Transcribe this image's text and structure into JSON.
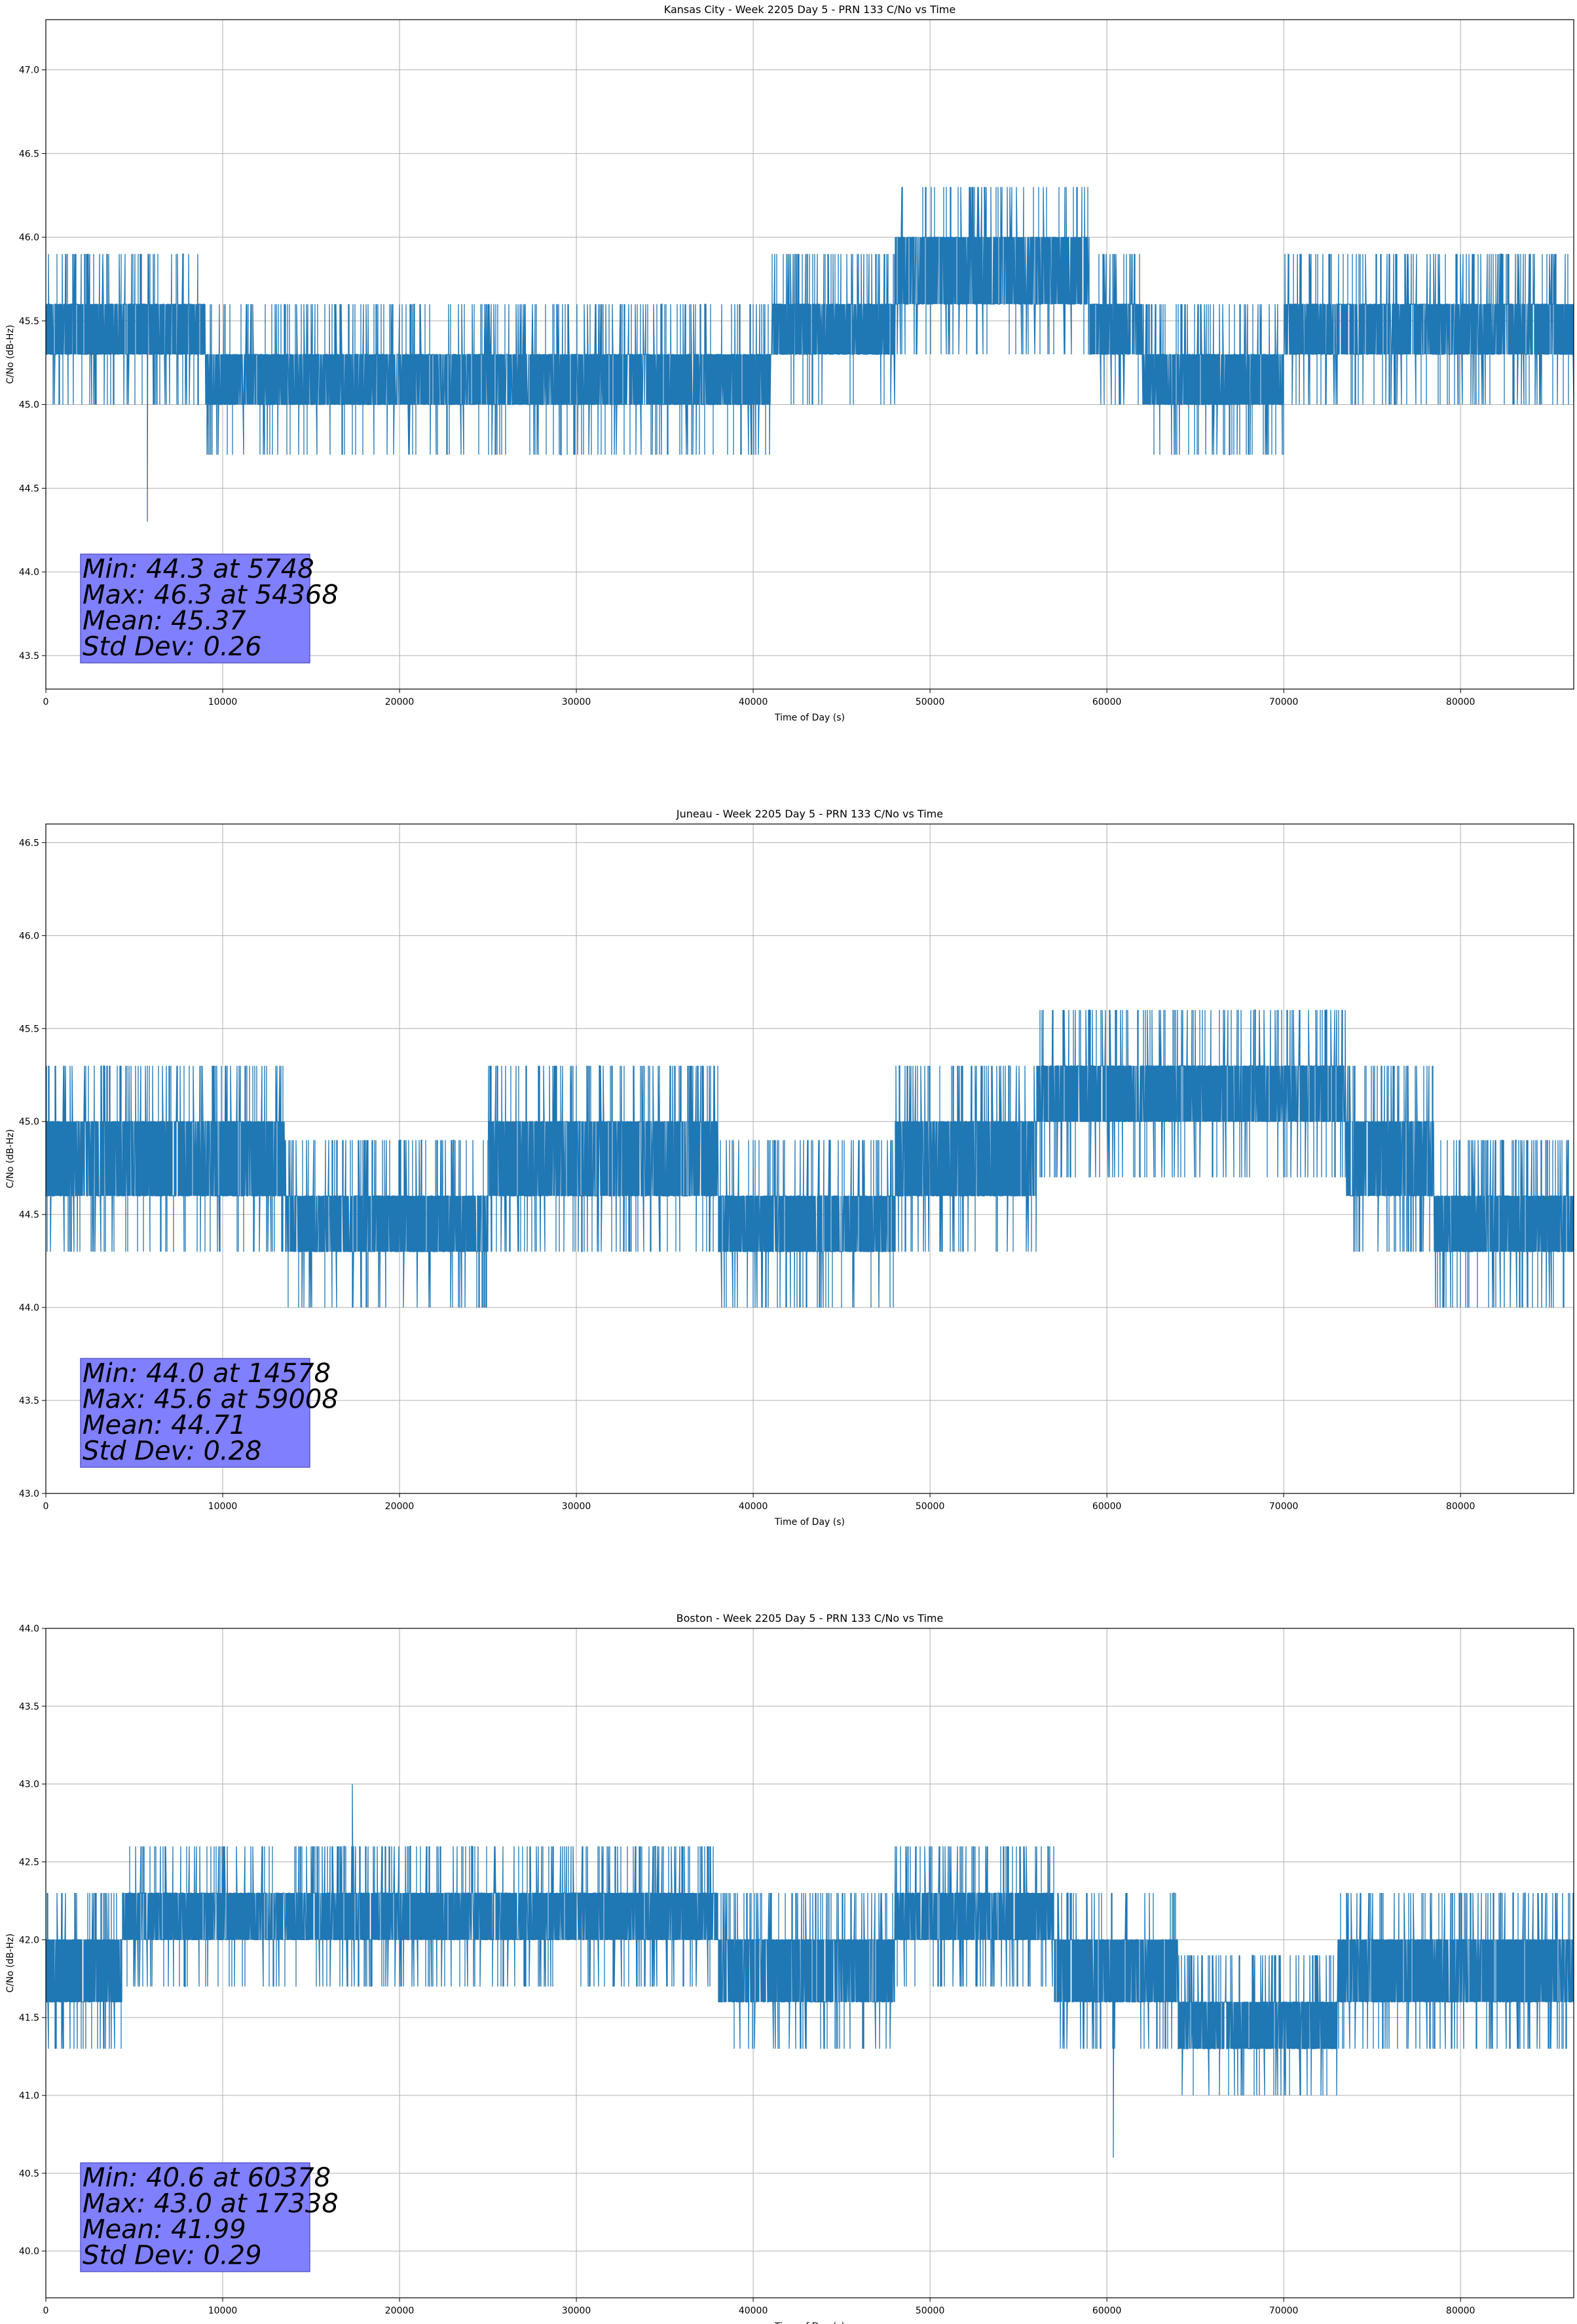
{
  "chart_data": [
    {
      "type": "line",
      "title": "Kansas City - Week 2205 Day 5 - PRN 133 C/No vs Time",
      "xlabel": "Time of Day (s)",
      "ylabel": "C/No (dB-Hz)",
      "xlim": [
        0,
        86400
      ],
      "ylim": [
        43.3,
        47.3
      ],
      "xticks": [
        0,
        10000,
        20000,
        30000,
        40000,
        50000,
        60000,
        70000,
        80000
      ],
      "yticks": [
        43.5,
        44.0,
        44.5,
        45.0,
        45.5,
        46.0,
        46.5,
        47.0
      ],
      "grid": true,
      "color": "#1f77b4",
      "quantization": 0.3,
      "base_levels": [
        {
          "x_start": 0,
          "x_end": 9000,
          "low": 45.3,
          "high": 45.6
        },
        {
          "x_start": 9000,
          "x_end": 41000,
          "low": 45.0,
          "high": 45.3
        },
        {
          "x_start": 41000,
          "x_end": 48000,
          "low": 45.3,
          "high": 45.6
        },
        {
          "x_start": 48000,
          "x_end": 59000,
          "low": 45.6,
          "high": 46.0
        },
        {
          "x_start": 59000,
          "x_end": 62000,
          "low": 45.3,
          "high": 45.6
        },
        {
          "x_start": 62000,
          "x_end": 70000,
          "low": 45.0,
          "high": 45.3
        },
        {
          "x_start": 70000,
          "x_end": 86400,
          "low": 45.3,
          "high": 45.6
        }
      ],
      "extremes": {
        "min": {
          "x": 5748,
          "y": 44.3
        },
        "max": {
          "x": 54368,
          "y": 46.3
        }
      },
      "stats": {
        "lines": [
          "Min: 44.3 at 5748",
          "Max: 46.3 at 54368",
          "Mean: 45.37",
          "Std Dev: 0.26"
        ],
        "box_color": "#8080ff",
        "placement": "bottom-left"
      }
    },
    {
      "type": "line",
      "title": "Juneau - Week 2205 Day 5 - PRN 133 C/No vs Time",
      "xlabel": "Time of Day (s)",
      "ylabel": "C/No (dB-Hz)",
      "xlim": [
        0,
        86400
      ],
      "ylim": [
        43.0,
        46.6
      ],
      "xticks": [
        0,
        10000,
        20000,
        30000,
        40000,
        50000,
        60000,
        70000,
        80000
      ],
      "yticks": [
        43.0,
        43.5,
        44.0,
        44.5,
        45.0,
        45.5,
        46.0,
        46.5
      ],
      "grid": true,
      "color": "#1f77b4",
      "quantization": 0.3,
      "base_levels": [
        {
          "x_start": 0,
          "x_end": 13500,
          "low": 44.6,
          "high": 45.0
        },
        {
          "x_start": 13500,
          "x_end": 25000,
          "low": 44.3,
          "high": 44.6
        },
        {
          "x_start": 25000,
          "x_end": 38000,
          "low": 44.6,
          "high": 45.0
        },
        {
          "x_start": 38000,
          "x_end": 48000,
          "low": 44.3,
          "high": 44.6
        },
        {
          "x_start": 48000,
          "x_end": 56000,
          "low": 44.6,
          "high": 45.0
        },
        {
          "x_start": 56000,
          "x_end": 73500,
          "low": 45.0,
          "high": 45.3
        },
        {
          "x_start": 73500,
          "x_end": 78500,
          "low": 44.6,
          "high": 45.0
        },
        {
          "x_start": 78500,
          "x_end": 86400,
          "low": 44.3,
          "high": 44.6
        }
      ],
      "extremes": {
        "min": {
          "x": 14578,
          "y": 44.0
        },
        "max": {
          "x": 59008,
          "y": 45.6
        }
      },
      "stats": {
        "lines": [
          "Min: 44.0 at 14578",
          "Max: 45.6 at 59008",
          "Mean: 44.71",
          "Std Dev: 0.28"
        ],
        "box_color": "#8080ff",
        "placement": "bottom-left"
      }
    },
    {
      "type": "line",
      "title": "Boston - Week 2205 Day 5 - PRN 133 C/No vs Time",
      "xlabel": "Time of Day (s)",
      "ylabel": "C/No (dB-Hz)",
      "xlim": [
        0,
        86400
      ],
      "ylim": [
        39.7,
        44.0
      ],
      "xticks": [
        0,
        10000,
        20000,
        30000,
        40000,
        50000,
        60000,
        70000,
        80000
      ],
      "yticks": [
        40.0,
        40.5,
        41.0,
        41.5,
        42.0,
        42.5,
        43.0,
        43.5,
        44.0
      ],
      "grid": true,
      "color": "#1f77b4",
      "quantization": 0.3,
      "base_levels": [
        {
          "x_start": 0,
          "x_end": 4300,
          "low": 41.6,
          "high": 42.0
        },
        {
          "x_start": 4300,
          "x_end": 38000,
          "low": 42.0,
          "high": 42.3
        },
        {
          "x_start": 38000,
          "x_end": 48000,
          "low": 41.6,
          "high": 42.0
        },
        {
          "x_start": 48000,
          "x_end": 57000,
          "low": 42.0,
          "high": 42.3
        },
        {
          "x_start": 57000,
          "x_end": 64000,
          "low": 41.6,
          "high": 42.0
        },
        {
          "x_start": 64000,
          "x_end": 73000,
          "low": 41.3,
          "high": 41.6
        },
        {
          "x_start": 73000,
          "x_end": 86400,
          "low": 41.6,
          "high": 42.0
        }
      ],
      "extremes": {
        "min": {
          "x": 60378,
          "y": 40.6
        },
        "max": {
          "x": 17338,
          "y": 43.0
        }
      },
      "stats": {
        "lines": [
          "Min: 40.6 at 60378",
          "Max: 43.0 at 17338",
          "Mean: 41.99",
          "Std Dev: 0.29"
        ],
        "box_color": "#8080ff",
        "placement": "bottom-left"
      }
    }
  ]
}
